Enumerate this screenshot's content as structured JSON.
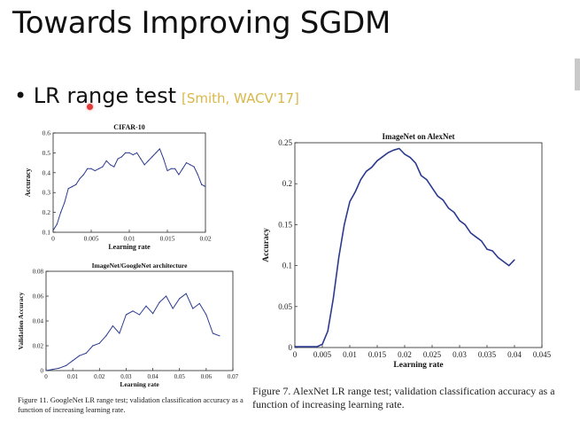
{
  "slide": {
    "title": "Towards Improving SGDM",
    "bullet": "LR range test",
    "citation": "[Smith, WACV'17]"
  },
  "chart_data": [
    {
      "type": "line",
      "title": "CIFAR-10",
      "xlabel": "Learning rate",
      "ylabel": "Accuracy",
      "xlim": [
        0,
        0.02
      ],
      "ylim": [
        0.1,
        0.6
      ],
      "xticks": [
        "0",
        "0.005",
        "0.01",
        "0.015",
        "0.02"
      ],
      "yticks": [
        "0.1",
        "0.2",
        "0.3",
        "0.4",
        "0.5",
        "0.6"
      ],
      "x": [
        0,
        0.0005,
        0.001,
        0.0015,
        0.002,
        0.0025,
        0.003,
        0.0035,
        0.004,
        0.0045,
        0.005,
        0.0055,
        0.006,
        0.0065,
        0.007,
        0.0075,
        0.008,
        0.0085,
        0.009,
        0.0095,
        0.01,
        0.0105,
        0.011,
        0.0115,
        0.012,
        0.0125,
        0.013,
        0.0135,
        0.014,
        0.0145,
        0.015,
        0.0155,
        0.016,
        0.0165,
        0.017,
        0.0175,
        0.018,
        0.0185,
        0.019,
        0.0195,
        0.02
      ],
      "values": [
        0.11,
        0.14,
        0.2,
        0.25,
        0.32,
        0.33,
        0.34,
        0.37,
        0.39,
        0.42,
        0.42,
        0.41,
        0.42,
        0.43,
        0.46,
        0.44,
        0.43,
        0.47,
        0.48,
        0.5,
        0.5,
        0.49,
        0.5,
        0.47,
        0.44,
        0.46,
        0.48,
        0.5,
        0.52,
        0.47,
        0.41,
        0.42,
        0.42,
        0.39,
        0.42,
        0.45,
        0.44,
        0.43,
        0.39,
        0.34,
        0.33
      ]
    },
    {
      "type": "line",
      "title": "ImageNet/GoogleNet architecture",
      "xlabel": "Learning rate",
      "ylabel": "Validation Accuracy",
      "xlim": [
        0,
        0.07
      ],
      "ylim": [
        0,
        0.08
      ],
      "xticks": [
        "0",
        "0.01",
        "0.02",
        "0.03",
        "0.04",
        "0.05",
        "0.06",
        "0.07"
      ],
      "yticks": [
        "0",
        "0.02",
        "0.04",
        "0.06",
        "0.08"
      ],
      "x": [
        0,
        0.0025,
        0.005,
        0.0075,
        0.01,
        0.0125,
        0.015,
        0.0175,
        0.02,
        0.0225,
        0.025,
        0.0275,
        0.03,
        0.0325,
        0.035,
        0.0375,
        0.04,
        0.0425,
        0.045,
        0.0475,
        0.05,
        0.0525,
        0.055,
        0.0575,
        0.06,
        0.0625,
        0.065
      ],
      "values": [
        0.0,
        0.001,
        0.002,
        0.004,
        0.008,
        0.012,
        0.014,
        0.02,
        0.022,
        0.028,
        0.036,
        0.03,
        0.045,
        0.048,
        0.045,
        0.052,
        0.046,
        0.055,
        0.06,
        0.05,
        0.058,
        0.062,
        0.05,
        0.054,
        0.045,
        0.03,
        0.028
      ]
    },
    {
      "type": "line",
      "title": "ImageNet on AlexNet",
      "xlabel": "Learning rate",
      "ylabel": "Accuracy",
      "xlim": [
        0,
        0.045
      ],
      "ylim": [
        0,
        0.25
      ],
      "xticks": [
        "0",
        "0.005",
        "0.01",
        "0.015",
        "0.02",
        "0.025",
        "0.03",
        "0.035",
        "0.04",
        "0.045"
      ],
      "yticks": [
        "0",
        "0.05",
        "0.1",
        "0.15",
        "0.2",
        "0.25"
      ],
      "x": [
        0,
        0.002,
        0.004,
        0.005,
        0.006,
        0.007,
        0.008,
        0.009,
        0.01,
        0.011,
        0.012,
        0.013,
        0.014,
        0.015,
        0.016,
        0.017,
        0.018,
        0.019,
        0.02,
        0.021,
        0.022,
        0.023,
        0.024,
        0.025,
        0.026,
        0.027,
        0.028,
        0.029,
        0.03,
        0.031,
        0.032,
        0.033,
        0.034,
        0.035,
        0.036,
        0.037,
        0.038,
        0.039,
        0.04
      ],
      "values": [
        0.001,
        0.001,
        0.001,
        0.004,
        0.02,
        0.06,
        0.11,
        0.15,
        0.178,
        0.19,
        0.205,
        0.215,
        0.22,
        0.228,
        0.233,
        0.238,
        0.241,
        0.243,
        0.236,
        0.232,
        0.225,
        0.21,
        0.205,
        0.195,
        0.185,
        0.18,
        0.17,
        0.165,
        0.155,
        0.15,
        0.14,
        0.135,
        0.13,
        0.12,
        0.118,
        0.11,
        0.105,
        0.1,
        0.107
      ]
    }
  ],
  "captions": {
    "left": "Figure 11. GoogleNet LR range test; validation classification accuracy as a function of increasing learning rate.",
    "right": "Figure 7. AlexNet LR range test; validation classification accuracy as a function of increasing learning rate."
  },
  "colors": {
    "line": "#2b3a8f",
    "citation": "#d9b84a"
  }
}
